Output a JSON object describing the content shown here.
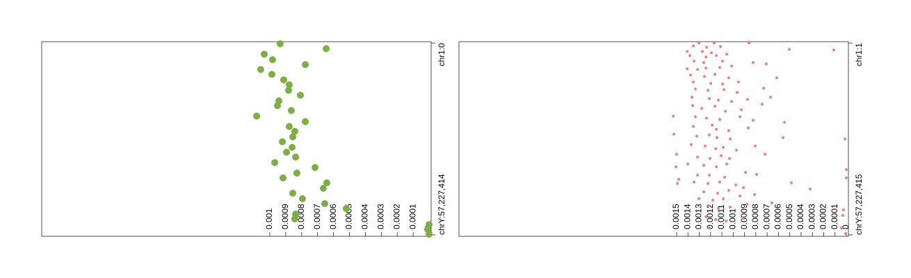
{
  "chart_data": [
    {
      "type": "scatter",
      "xlim": [
        0.0024323,
        -1.31e-05
      ],
      "xticks": [
        0,
        0.0001,
        0.0002,
        0.0003,
        0.0004,
        0.0005,
        0.0006,
        0.0007,
        0.0008,
        0.0009,
        0.001
      ],
      "ylim": [
        -22432000,
        3118109000
      ],
      "yticks": [
        {
          "value": 0,
          "label": "chr1:0"
        },
        {
          "value": 3095677414,
          "label": "chrY:57,227,414"
        }
      ],
      "series": [
        {
          "color": "#7cae44",
          "x": [
            0.000935,
            0.000646,
            0.001035,
            0.000983,
            0.000777,
            0.001057,
            0.000987,
            0.000913,
            0.000878,
            0.000882,
            0.000808,
            0.000943,
            0.000952,
            0.000865,
            0.001083,
            0.000777,
            0.000878,
            0.000843,
            0.000856,
            0.000921,
            0.00086,
            0.000895,
            0.000838,
            0.000969,
            0.000716,
            0.00083,
            0.000917,
            0.000642,
            0.000664,
            0.000856,
            0.000795,
            0.000655,
            0.00052,
            0.000838,
            0.000843,
            0,
            8.7e-06,
            0
          ],
          "y": [
            11200000,
            89700000,
            179500000,
            269200000,
            347700000,
            426200000,
            504700000,
            594400000,
            673000000,
            762700000,
            841200000,
            930900000,
            1009400000,
            1088000000,
            1177700000,
            1267400000,
            1345900000,
            1424400000,
            1514200000,
            1592700000,
            1682400000,
            1760900000,
            1839400000,
            1929200000,
            2007700000,
            2097400000,
            2175900000,
            2254400000,
            2344200000,
            2422700000,
            2512400000,
            2590900000,
            2669400000,
            2759200000,
            2837600000,
            2927400000,
            3005900000,
            3084400000
          ]
        }
      ]
    },
    {
      "type": "scatter",
      "xlim": [
        0.0034241,
        -1.84e-05
      ],
      "xticks": [
        0,
        0.0001,
        0.0002,
        0.0003,
        0.0004,
        0.0005,
        0.0006,
        0.0007,
        0.0008,
        0.0009,
        0.001,
        0.0011,
        0.0012,
        0.0013,
        0.0014,
        0.0015
      ],
      "ylim": [
        -22431000,
        3118110000
      ],
      "yticks": [
        {
          "value": 1,
          "label": "chr1:1"
        },
        {
          "value": 3095677415,
          "label": "chrY:57,227,415"
        }
      ],
      "series": [
        {
          "color": "#f08080",
          "x": [
            0.001303,
            0.001168,
            0.00086,
            0.001352,
            0.001235,
            0.001112,
            0.000504,
            0.000111,
            0.001407,
            0.001272,
            0.001192,
            0.001383,
            0.001241,
            0.001149,
            0.001057,
            0.001346,
            0.00126,
            0.001094,
            0.000824,
            0.001407,
            0.001315,
            0.001241,
            0.001119,
            0.001014,
            0.000707,
            0.001377,
            0.001254,
            0.001162,
            0.001039,
            0.000615,
            0.001352,
            0.001198,
            0.001094,
            0.000953,
            0.001334,
            0.001223,
            0.001082,
            0.000965,
            0.000731,
            0.00067,
            0.001364,
            0.001211,
            0.001131,
            0.001014,
            0.000873,
            0.001358,
            0.001278,
            0.001162,
            0.001069,
            0.000928,
            0.000744,
            0.00153,
            0.001334,
            0.001235,
            0.001119,
            0.00094,
            0.000824,
            0.000547,
            0.001352,
            0.001186,
            0.001149,
            0.001039,
            0.000867,
            0.001524,
            0.001321,
            0.001211,
            0.001143,
            0.001026,
            0.000559,
            1.2e-05,
            0.001371,
            0.001248,
            0.001155,
            0.001088,
            0.000971,
            0.000805,
            0.0015,
            0.001315,
            0.001205,
            0.001106,
            0.001033,
            0.000719,
            0.001401,
            0.00126,
            0.001149,
            0.001057,
            0.001506,
            0.001315,
            0.001211,
            0.001076,
            0.000891,
            0.000793,
            0.001481,
            0.001346,
            0.001223,
            0.001119,
            0.000977,
            0.000486,
            0,
            0.001493,
            0.00126,
            0.001137,
            0.001039,
            0.00091,
            0.00032,
            0,
            0.001303,
            0.00118,
            0.001088,
            0.00094,
            0.000811,
            0.001217,
            0.001131,
            0.001026,
            0.000879,
            0.000658,
            2.5e-05,
            0.001241,
            0.001155,
            0.001063,
            0.000916,
            3.1e-05,
            0.001211,
            4.3e-05,
            6e-06
          ],
          "y": [
            1000,
            1000,
            1000,
            44900000,
            67300000,
            56100000,
            100900000,
            112200000,
            134600000,
            134600000,
            157000000,
            201900000,
            224300000,
            201900000,
            179500000,
            291600000,
            314000000,
            291600000,
            314000000,
            415000000,
            426200000,
            403800000,
            392600000,
            370100000,
            336500000,
            515900000,
            538400000,
            504700000,
            560800000,
            560800000,
            628100000,
            650500000,
            661700000,
            628100000,
            740300000,
            762700000,
            751500000,
            796300000,
            729000000,
            874800000,
            874800000,
            897300000,
            919700000,
            942100000,
            908500000,
            1009400000,
            1054300000,
            1020700000,
            1099200000,
            1076700000,
            987000000,
            1177700000,
            1188900000,
            1211300000,
            1233800000,
            1188900000,
            1245000000,
            1278600000,
            1345900000,
            1323500000,
            1390800000,
            1413200000,
            1368400000,
            1469300000,
            1503000000,
            1480500000,
            1525400000,
            1547800000,
            1525400000,
            1547800000,
            1637500000,
            1660000000,
            1704800000,
            1682400000,
            1727300000,
            1660000000,
            1794600000,
            1839400000,
            1861900000,
            1817000000,
            1861900000,
            1794600000,
            1951600000,
            1974000000,
            1996400000,
            1951600000,
            1996400000,
            2131000000,
            2131000000,
            2164700000,
            2086200000,
            2119800000,
            2198300000,
            2243200000,
            2265600000,
            2243200000,
            2288100000,
            2254400000,
            2041300000,
            2265600000,
            2400200000,
            2422700000,
            2377800000,
            2332900000,
            2355400000,
            2175900000,
            2512400000,
            2534800000,
            2512400000,
            2467500000,
            2445100000,
            2624500000,
            2669400000,
            2647000000,
            2602100000,
            2579700000,
            2691800000,
            2804000000,
            2848900000,
            2871300000,
            2826400000,
            2781600000,
            2983500000,
            2983500000,
            3073200000
          ]
        }
      ]
    }
  ]
}
